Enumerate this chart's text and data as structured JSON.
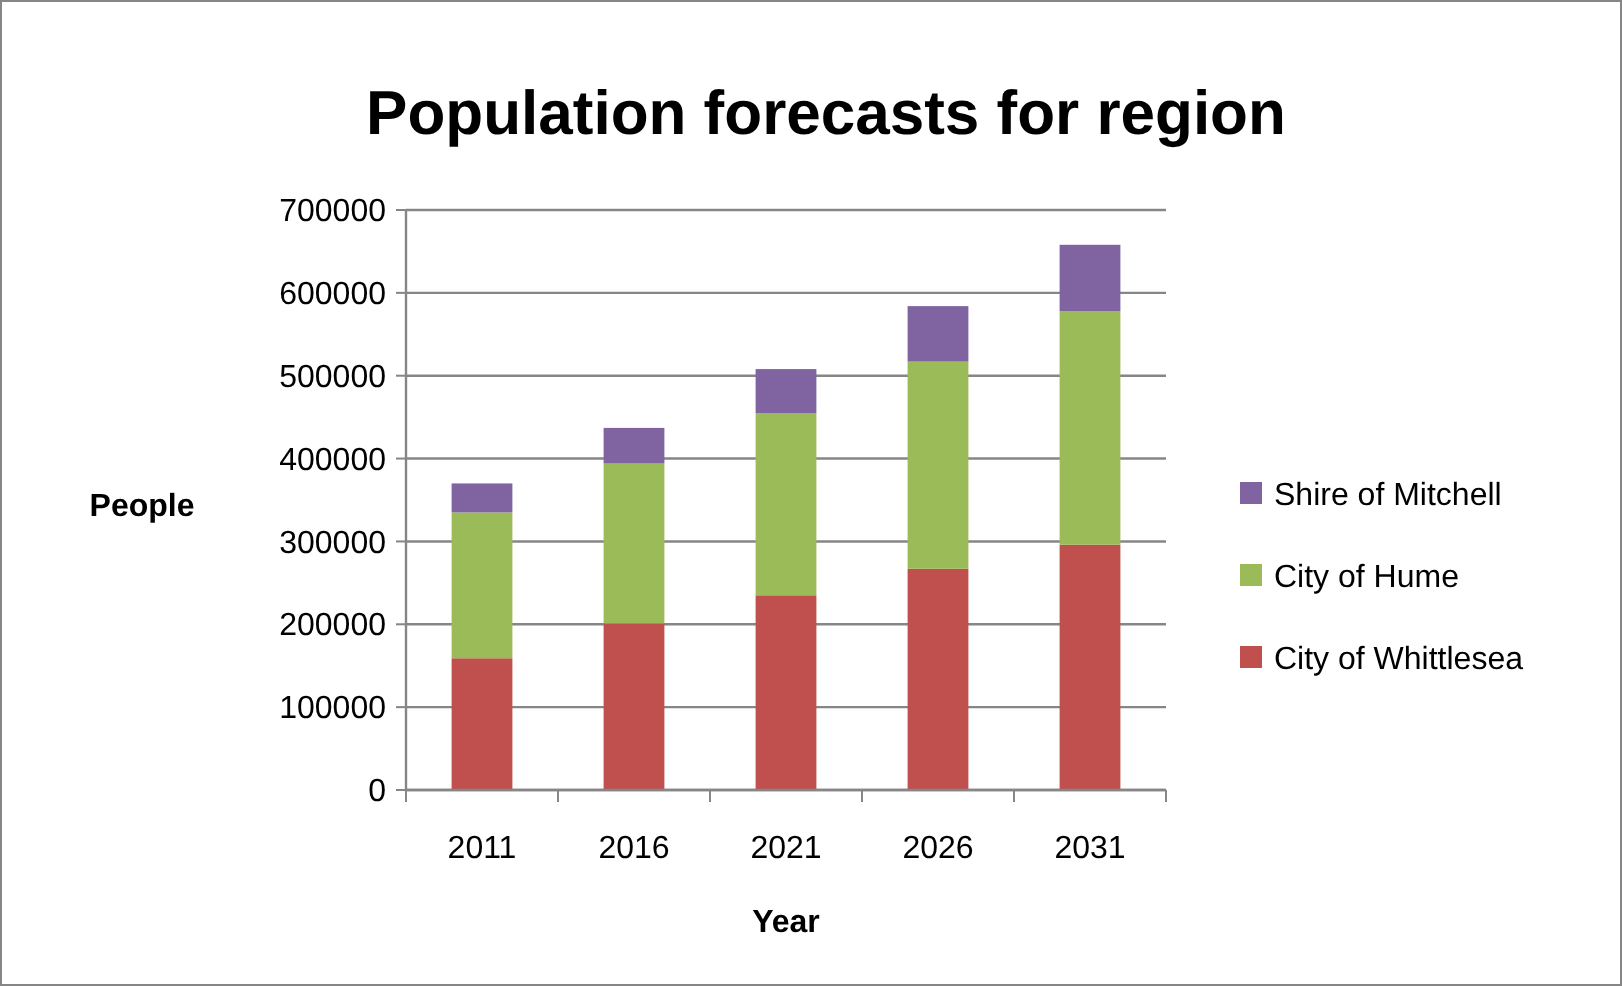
{
  "chart_data": {
    "type": "bar",
    "title": "Population forecasts for region",
    "xlabel": "Year",
    "ylabel": "People",
    "categories": [
      "2011",
      "2016",
      "2021",
      "2026",
      "2031"
    ],
    "stacked": true,
    "series": [
      {
        "name": "City of Whittlesea",
        "color": "#c0504d",
        "values": [
          159000,
          201000,
          235000,
          267000,
          296000
        ]
      },
      {
        "name": "City of Hume",
        "color": "#9bbb59",
        "values": [
          176000,
          193000,
          220000,
          250000,
          282000
        ]
      },
      {
        "name": "Shire of Mitchell",
        "color": "#8064a2",
        "values": [
          35000,
          43000,
          53000,
          67000,
          80000
        ]
      }
    ],
    "ylim": [
      0,
      700000
    ],
    "yticks": [
      0,
      100000,
      200000,
      300000,
      400000,
      500000,
      600000,
      700000
    ],
    "grid": "y",
    "legend": "right"
  }
}
